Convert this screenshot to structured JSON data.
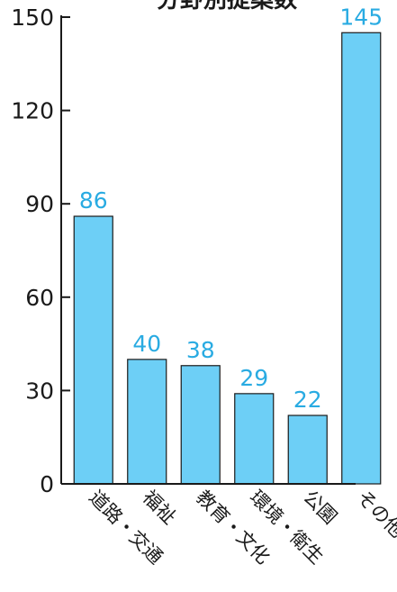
{
  "chart_data": {
    "type": "bar",
    "title": "",
    "title_partial_visible": "分野別提案数",
    "categories": [
      "道路・交通",
      "福祉",
      "教育・文化",
      "環境・衛生",
      "公園",
      "その他"
    ],
    "values": [
      86,
      40,
      38,
      29,
      22,
      145
    ],
    "value_labels": [
      "86",
      "40",
      "38",
      "29",
      "22",
      "145"
    ],
    "yticks": [
      0,
      30,
      60,
      90,
      120,
      150
    ],
    "ytick_labels": [
      "0",
      "30",
      "60",
      "90",
      "120",
      "150"
    ],
    "ylim": [
      0,
      150
    ],
    "xlabel": "",
    "ylabel": "",
    "grid": false,
    "legend": "none",
    "colors": {
      "bar_fill": "#6dcff6",
      "bar_stroke": "#1a1a1a",
      "data_label": "#29abe2",
      "axis": "#1a1a1a"
    }
  }
}
